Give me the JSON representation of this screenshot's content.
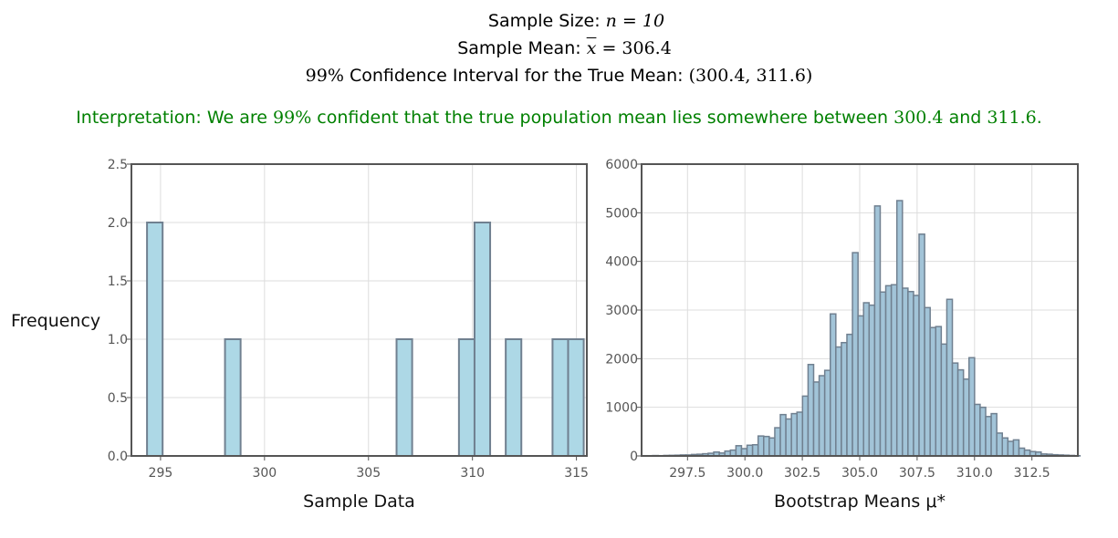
{
  "header": {
    "sample_size_label": "Sample Size:",
    "sample_size_expr": "n = 10",
    "sample_mean_label": "Sample Mean:",
    "sample_mean_symbol": "x",
    "sample_mean_value": "= 306.4",
    "ci_label_pct": "99%",
    "ci_label_text": "Confidence Interval for the True Mean:",
    "ci_value": "(300.4, 311.6)",
    "interpretation_a": "Interpretation: We are ",
    "interpretation_pct": "99%",
    "interpretation_b": " confident that the true population mean lies somewhere between ",
    "interpretation_lo": "300.4",
    "interpretation_c": " and ",
    "interpretation_hi": "311.6",
    "interpretation_d": "."
  },
  "colors": {
    "bar_fill": "#add8e6",
    "bar_edge": "#708090",
    "bootstrap_fill": "#a2c4d8",
    "interpretation": "#008000",
    "axis_frame": "#555555",
    "grid": "#dddddd"
  },
  "chart_data": [
    {
      "type": "bar",
      "xlabel": "Sample Data",
      "ylabel": "Frequency",
      "xlim": [
        293.6,
        315.5
      ],
      "ylim": [
        0,
        2.5
      ],
      "xticks": [
        295,
        300,
        305,
        310,
        315
      ],
      "yticks": [
        0.0,
        0.5,
        1.0,
        1.5,
        2.0,
        2.5
      ],
      "ytick_labels": [
        "0.0",
        "0.5",
        "1.0",
        "1.5",
        "2.0",
        "2.5"
      ],
      "grid": true,
      "bin_width": 0.75,
      "bin_start": 294.35,
      "counts": [
        2,
        0,
        0,
        0,
        0,
        1,
        0,
        0,
        0,
        0,
        0,
        0,
        0,
        0,
        0,
        0,
        1,
        0,
        0,
        0,
        1,
        2,
        0,
        1,
        0,
        0,
        1,
        1
      ]
    },
    {
      "type": "bar",
      "xlabel": "Bootstrap Means μ*",
      "ylabel": "",
      "xlim": [
        295.5,
        314.5
      ],
      "ylim": [
        0,
        6000
      ],
      "xticks": [
        297.5,
        300.0,
        302.5,
        305.0,
        307.5,
        310.0,
        312.5
      ],
      "yticks": [
        0,
        1000,
        2000,
        3000,
        4000,
        5000,
        6000
      ],
      "grid": true,
      "bin_width": 0.2417,
      "bin_start": 295.5,
      "counts": [
        5,
        5,
        8,
        5,
        10,
        12,
        15,
        20,
        20,
        30,
        35,
        45,
        55,
        80,
        60,
        100,
        120,
        210,
        150,
        220,
        230,
        410,
        400,
        370,
        580,
        850,
        760,
        870,
        900,
        1230,
        1880,
        1520,
        1650,
        1760,
        2920,
        2240,
        2330,
        2500,
        4180,
        2880,
        3150,
        3100,
        5140,
        3370,
        3500,
        3520,
        5250,
        3450,
        3380,
        3300,
        4560,
        3050,
        2640,
        2660,
        2300,
        3220,
        1910,
        1770,
        1580,
        2020,
        1060,
        1000,
        810,
        870,
        470,
        370,
        300,
        330,
        160,
        120,
        90,
        80,
        40,
        35,
        25,
        20,
        15,
        10,
        5
      ]
    }
  ]
}
